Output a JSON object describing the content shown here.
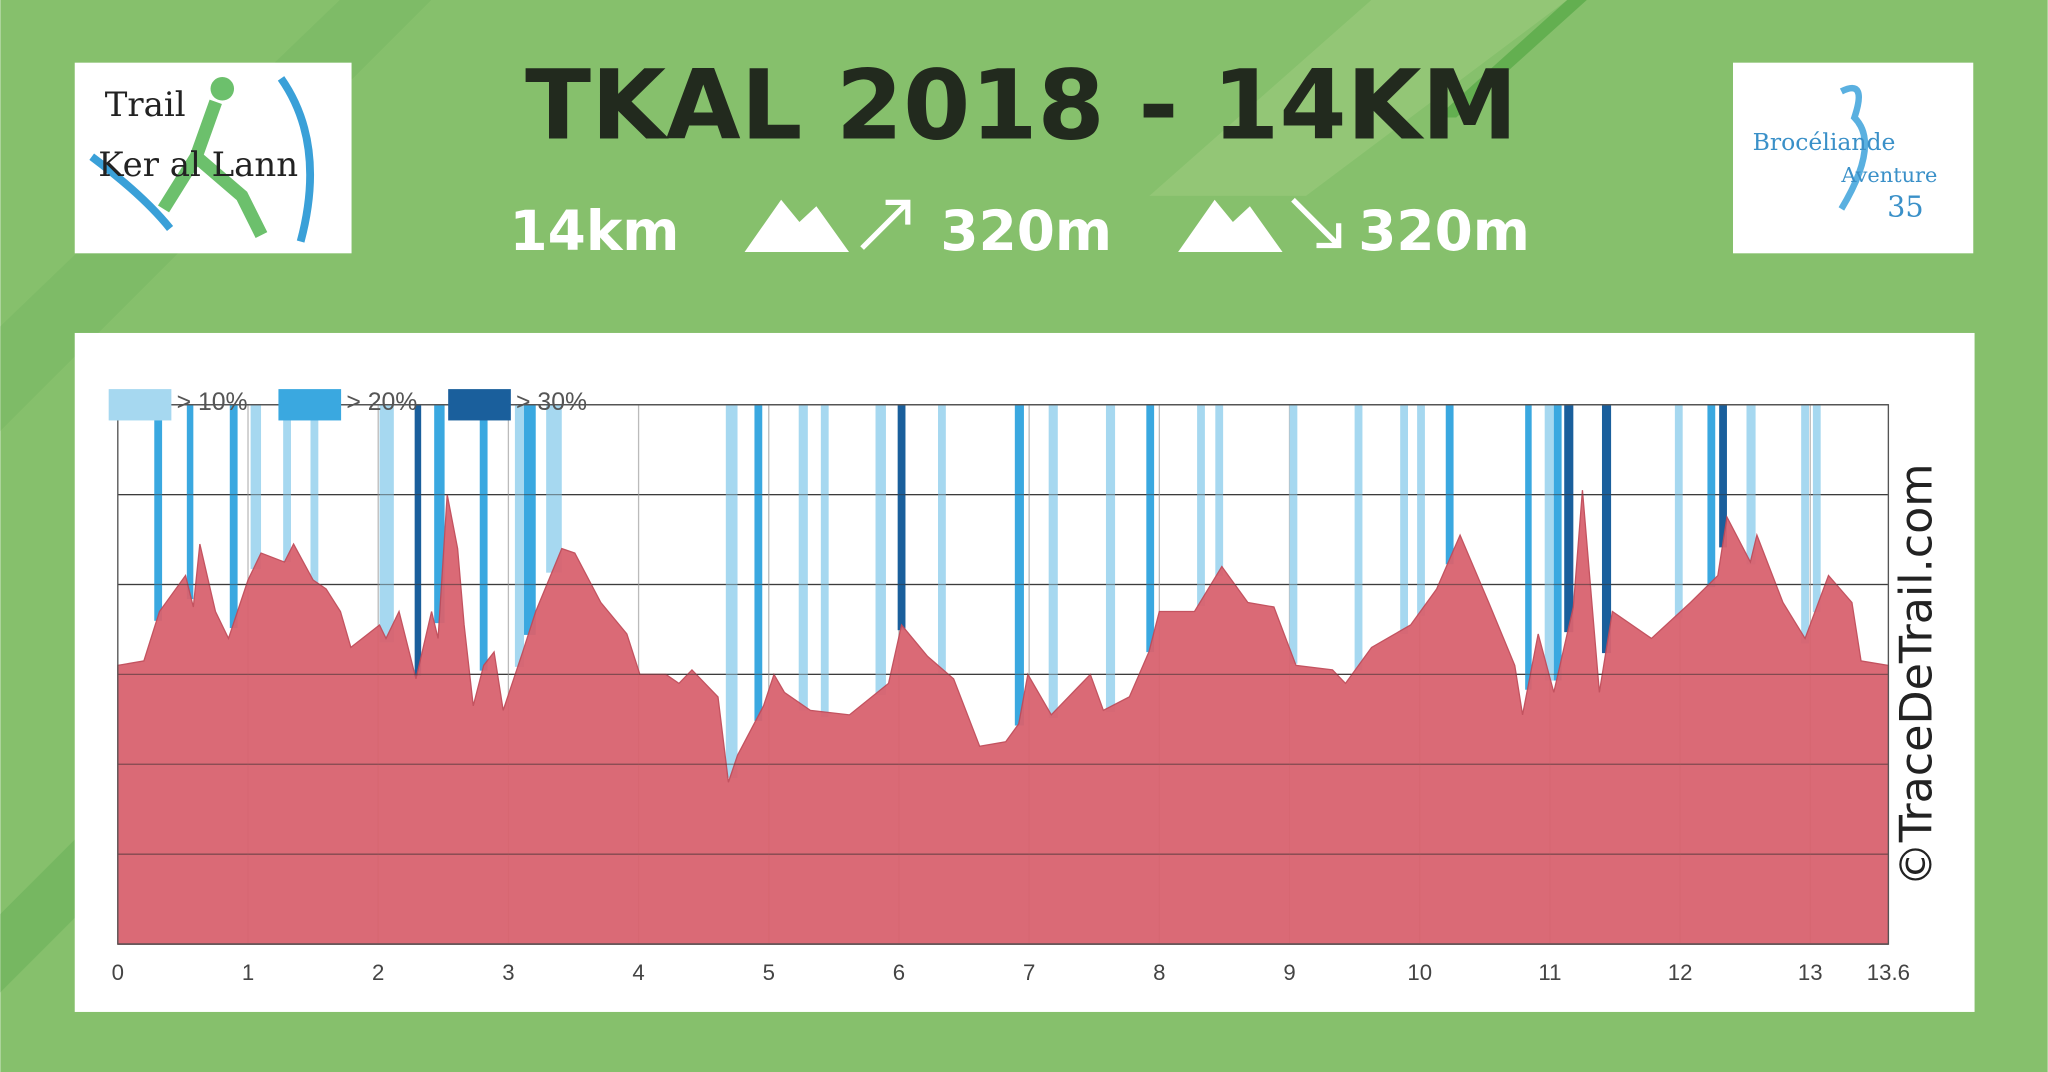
{
  "header": {
    "title": "TKAL 2018 - 14KM",
    "distance": "14km",
    "ascent": "320m",
    "descent": "320m"
  },
  "logo_left": {
    "line1": "Trail",
    "line2": "Ker al Lann"
  },
  "logo_right": {
    "line1": "Brocéliande",
    "line2": "Aventure",
    "line3": "35"
  },
  "watermark": "©TraceDeTrail.com",
  "chart_data": {
    "type": "area",
    "color": "#d9636f",
    "xlim": [
      0,
      13.6
    ],
    "ylim": [
      0,
      120
    ],
    "xticks": [
      0,
      1,
      2,
      3,
      4,
      5,
      6,
      7,
      8,
      9,
      10,
      11,
      12,
      13,
      13.6
    ],
    "x": [
      0,
      0.2,
      0.32,
      0.52,
      0.58,
      0.63,
      0.75,
      0.85,
      1,
      1.1,
      1.28,
      1.35,
      1.5,
      1.6,
      1.71,
      1.79,
      2.01,
      2.06,
      2.16,
      2.29,
      2.41,
      2.46,
      2.53,
      2.61,
      2.66,
      2.73,
      2.81,
      2.89,
      2.96,
      3.11,
      3.21,
      3.41,
      3.51,
      3.71,
      3.91,
      4.01,
      4.21,
      4.31,
      4.41,
      4.61,
      4.69,
      4.76,
      4.96,
      5.04,
      5.12,
      5.32,
      5.62,
      5.92,
      6.02,
      6.22,
      6.42,
      6.62,
      6.82,
      6.92,
      6.99,
      7.17,
      7.37,
      7.47,
      7.57,
      7.77,
      7.92,
      8,
      8.27,
      8.48,
      8.68,
      8.88,
      9.05,
      9.33,
      9.43,
      9.63,
      9.93,
      10.13,
      10.31,
      10.53,
      10.73,
      10.79,
      10.91,
      11.03,
      11.18,
      11.25,
      11.38,
      11.48,
      11.78,
      12.08,
      12.29,
      12.36,
      12.54,
      12.59,
      12.79,
      12.96,
      13.14,
      13.32,
      13.39,
      13.6
    ],
    "values": [
      62,
      63,
      74,
      82,
      75,
      89,
      74,
      68,
      81,
      87,
      85,
      89,
      81,
      79,
      74,
      66,
      71,
      68,
      74,
      59,
      74,
      68,
      100,
      88,
      71,
      53,
      62,
      65,
      52,
      65,
      74,
      88,
      87,
      76,
      69,
      60,
      60,
      58,
      61,
      55,
      36,
      42,
      53,
      60,
      56,
      52,
      51,
      58,
      71,
      64,
      59,
      44,
      45,
      49,
      60,
      51,
      57,
      60,
      52,
      55,
      65,
      74,
      74,
      84,
      76,
      75,
      62,
      61,
      58,
      66,
      71,
      79,
      91,
      76,
      62,
      51,
      69,
      56,
      75,
      101,
      56,
      74,
      68,
      76,
      82,
      95,
      85,
      91,
      76,
      68,
      82,
      76,
      63,
      62
    ],
    "slope_series": [
      {
        "name": "> 10%",
        "color": "#a6d8f0",
        "ranges": [
          [
            1.02,
            1.1
          ],
          [
            1.27,
            1.33
          ],
          [
            1.48,
            1.54
          ],
          [
            2.01,
            2.12
          ],
          [
            3.05,
            3.12
          ],
          [
            3.29,
            3.41
          ],
          [
            4.67,
            4.76
          ],
          [
            5.23,
            5.3
          ],
          [
            5.4,
            5.46
          ],
          [
            5.82,
            5.9
          ],
          [
            6.3,
            6.36
          ],
          [
            7.15,
            7.22
          ],
          [
            7.59,
            7.66
          ],
          [
            8.29,
            8.35
          ],
          [
            8.43,
            8.49
          ],
          [
            9,
            9.06
          ],
          [
            9.5,
            9.56
          ],
          [
            9.85,
            9.91
          ],
          [
            9.98,
            10.04
          ],
          [
            10.96,
            11.03
          ],
          [
            11.96,
            12.02
          ],
          [
            12.51,
            12.58
          ],
          [
            12.93,
            12.99
          ],
          [
            13.02,
            13.08
          ]
        ]
      },
      {
        "name": "> 20%",
        "color": "#3aa8e0",
        "ranges": [
          [
            0.28,
            0.34
          ],
          [
            0.53,
            0.58
          ],
          [
            0.86,
            0.92
          ],
          [
            2.43,
            2.51
          ],
          [
            2.78,
            2.84
          ],
          [
            3.12,
            3.21
          ],
          [
            4.89,
            4.95
          ],
          [
            6.89,
            6.96
          ],
          [
            7.9,
            7.96
          ],
          [
            10.2,
            10.26
          ],
          [
            10.81,
            10.86
          ],
          [
            11.03,
            11.09
          ],
          [
            12.21,
            12.27
          ]
        ]
      },
      {
        "name": "> 30%",
        "color": "#1a5f9c",
        "ranges": [
          [
            2.28,
            2.33
          ],
          [
            5.99,
            6.05
          ],
          [
            11.11,
            11.18
          ],
          [
            11.4,
            11.47
          ],
          [
            12.3,
            12.36
          ]
        ]
      }
    ]
  }
}
